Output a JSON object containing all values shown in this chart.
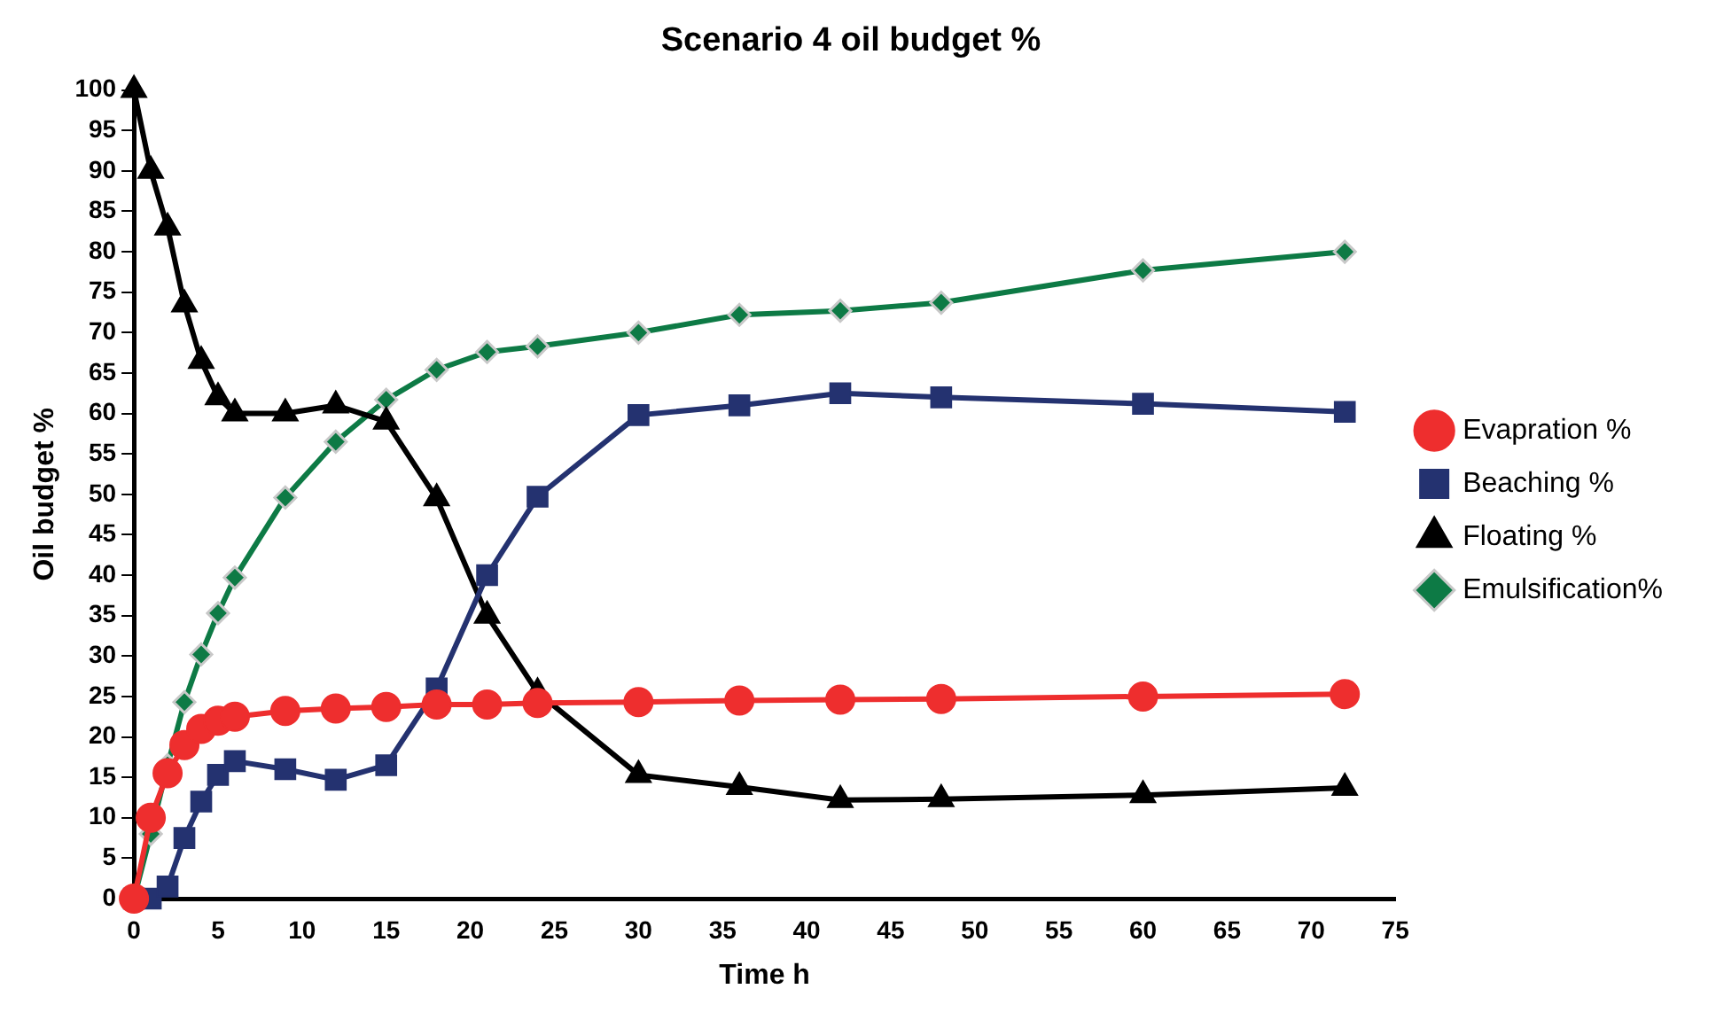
{
  "chart_data": {
    "type": "line",
    "title": "Scenario 4 oil budget %",
    "xlabel": "Time h",
    "ylabel": "Oil budget %",
    "x": [
      0,
      1,
      2,
      3,
      4,
      5,
      6,
      9,
      12,
      15,
      18,
      21,
      24,
      30,
      36,
      42,
      48,
      60,
      72
    ],
    "series": [
      {
        "name": "Evapration %",
        "color": "#ee2e2e",
        "marker": "circle",
        "line_style": "solid",
        "values": [
          0,
          10,
          15.5,
          19,
          21,
          22,
          22.5,
          23.2,
          23.5,
          23.7,
          24,
          24,
          24.2,
          24.3,
          24.5,
          24.6,
          24.7,
          25,
          25.3
        ]
      },
      {
        "name": "Beaching %",
        "color": "#243270",
        "marker": "square",
        "line_style": "solid",
        "values": [
          0,
          0,
          1.5,
          7.5,
          12,
          15.3,
          17,
          16,
          14.7,
          16.5,
          26,
          40,
          49.7,
          59.8,
          61,
          62.5,
          62,
          61.2,
          60.2
        ]
      },
      {
        "name": "Floating %",
        "color": "#000000",
        "marker": "triangle",
        "line_style": "solid",
        "values": [
          100,
          90,
          83,
          73.5,
          66.5,
          62,
          60,
          60,
          61,
          59,
          49.5,
          35,
          25.5,
          15.3,
          13.8,
          12.2,
          12.3,
          12.8,
          13.7
        ]
      },
      {
        "name": "Emulsification%",
        "color": "#0d7a45",
        "marker": "diamond",
        "line_style": "solid",
        "values": [
          0,
          8,
          16.5,
          24.3,
          30.2,
          35.3,
          39.7,
          49.6,
          56.5,
          61.7,
          65.4,
          67.6,
          68.3,
          70,
          72.2,
          72.7,
          73.7,
          77.7,
          80
        ]
      }
    ],
    "xlim": [
      0,
      75
    ],
    "xticks": [
      0,
      5,
      10,
      15,
      20,
      25,
      30,
      35,
      40,
      45,
      50,
      55,
      60,
      65,
      70,
      75
    ],
    "ylim": [
      0,
      100
    ],
    "yticks": [
      0,
      5,
      10,
      15,
      20,
      25,
      30,
      35,
      40,
      45,
      50,
      55,
      60,
      65,
      70,
      75,
      80,
      85,
      90,
      95,
      100
    ],
    "grid": false,
    "legend": "right"
  }
}
